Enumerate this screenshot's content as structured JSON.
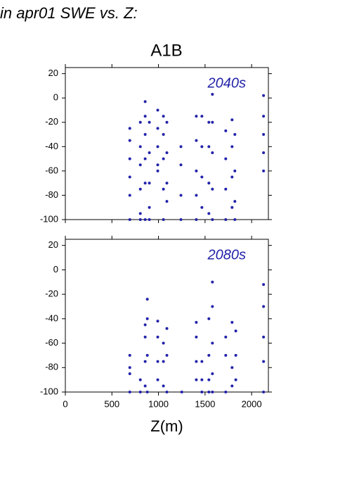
{
  "header": "in apr01 SWE vs. Z:",
  "chart_data": [
    {
      "type": "scatter",
      "title": "A1B",
      "annotation": "2040s",
      "color": "#2222aa",
      "xlim": [
        0,
        2180
      ],
      "ylim": [
        -100,
        25
      ],
      "xticks": [
        0,
        500,
        1000,
        1500,
        2000
      ],
      "yticks": [
        -100,
        -80,
        -60,
        -40,
        -20,
        0,
        20
      ],
      "x": [
        692,
        692,
        692,
        692,
        692,
        692,
        805,
        805,
        805,
        805,
        805,
        805,
        857,
        857,
        857,
        857,
        857,
        857,
        902,
        902,
        902,
        902,
        902,
        992,
        992,
        992,
        992,
        992,
        1053,
        1053,
        1053,
        1053,
        1053,
        1090,
        1090,
        1090,
        1090,
        1241,
        1241,
        1241,
        1241,
        1406,
        1406,
        1406,
        1406,
        1406,
        1466,
        1466,
        1466,
        1466,
        1541,
        1541,
        1541,
        1541,
        1579,
        1579,
        1579,
        1579,
        1579,
        1722,
        1722,
        1722,
        1722,
        1790,
        1790,
        1790,
        1790,
        1820,
        1820,
        1820,
        1820,
        2128,
        2128,
        2128,
        2128,
        2128
      ],
      "y": [
        -25,
        -35,
        -50,
        -65,
        -80,
        -100,
        -20,
        -40,
        -55,
        -75,
        -95,
        -100,
        -3,
        -15,
        -30,
        -50,
        -70,
        -100,
        -20,
        -45,
        -70,
        -90,
        -100,
        -10,
        -25,
        -40,
        -55,
        -60,
        -15,
        -30,
        -50,
        -75,
        -100,
        -20,
        -45,
        -70,
        -85,
        -40,
        -55,
        -80,
        -100,
        -15,
        -35,
        -60,
        -80,
        -100,
        -15,
        -40,
        -65,
        -90,
        -20,
        -40,
        -70,
        -95,
        3,
        -20,
        -45,
        -75,
        -100,
        -27,
        -50,
        -75,
        -100,
        -18,
        -40,
        -65,
        -90,
        -30,
        -60,
        -85,
        -100,
        2,
        -15,
        -30,
        -45,
        -60
      ]
    },
    {
      "type": "scatter",
      "annotation": "2080s",
      "xlabel": "Z(m)",
      "color": "#2222aa",
      "xlim": [
        0,
        2180
      ],
      "ylim": [
        -100,
        25
      ],
      "xticks": [
        0,
        500,
        1000,
        1500,
        2000
      ],
      "yticks": [
        -100,
        -80,
        -60,
        -40,
        -20,
        0,
        20
      ],
      "x": [
        692,
        692,
        692,
        692,
        805,
        805,
        857,
        857,
        857,
        857,
        880,
        880,
        880,
        880,
        992,
        992,
        992,
        992,
        1053,
        1053,
        1053,
        1090,
        1090,
        1090,
        1250,
        1406,
        1406,
        1406,
        1406,
        1466,
        1466,
        1466,
        1541,
        1541,
        1541,
        1541,
        1579,
        1579,
        1579,
        1579,
        1579,
        1722,
        1722,
        1722,
        1790,
        1790,
        1790,
        1830,
        1830,
        1830,
        2128,
        2128,
        2128,
        2128,
        2128
      ],
      "y": [
        -70,
        -80,
        -85,
        -100,
        -90,
        -100,
        -45,
        -55,
        -75,
        -95,
        -24,
        -40,
        -70,
        -100,
        -42,
        -55,
        -75,
        -90,
        -60,
        -75,
        -95,
        -48,
        -70,
        -100,
        -100,
        -43,
        -55,
        -75,
        -90,
        -75,
        -90,
        -100,
        -40,
        -70,
        -90,
        -100,
        -10,
        -30,
        -60,
        -85,
        -100,
        -55,
        -70,
        -100,
        -43,
        -80,
        -95,
        -50,
        -70,
        -90,
        -12,
        -30,
        -55,
        -75,
        -100
      ]
    }
  ]
}
